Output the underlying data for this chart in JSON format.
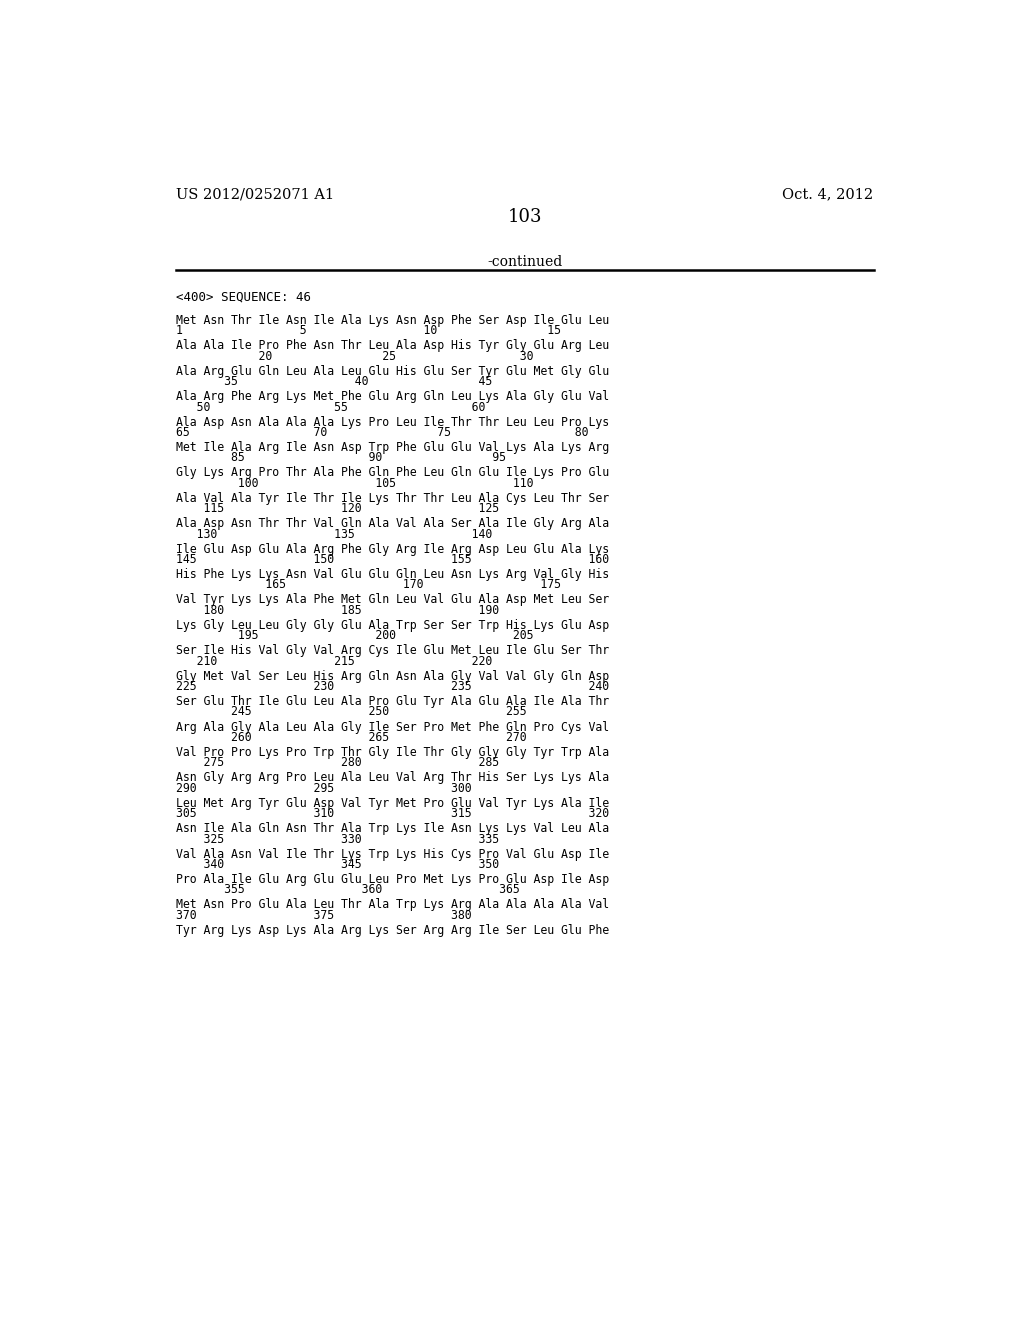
{
  "patent_number": "US 2012/0252071 A1",
  "date": "Oct. 4, 2012",
  "page_number": "103",
  "continued_text": "-continued",
  "sequence_header": "<400> SEQUENCE: 46",
  "background_color": "#ffffff",
  "text_color": "#000000",
  "sequence_blocks": [
    {
      "aa": "Met Asn Thr Ile Asn Ile Ala Lys Asn Asp Phe Ser Asp Ile Glu Leu",
      "nums": "1                 5                 10                15",
      "italic_words": []
    },
    {
      "aa": "Ala Ala Ile Pro Phe Asn Thr Leu Ala Asp His Tyr Gly Glu Arg Leu",
      "nums": "            20                25                  30",
      "italic_words": []
    },
    {
      "aa": "Ala Arg Glu Gln Leu Ala Leu Glu His Glu Ser Tyr Glu Met Gly Glu",
      "nums": "       35                 40                45",
      "italic_words": []
    },
    {
      "aa": "Ala Arg Phe Arg Lys Met Phe Glu Arg Gln Leu Lys Ala Gly Glu Val",
      "nums": "   50                  55                  60",
      "italic_words": []
    },
    {
      "aa": "Ala Asp Asn Ala Ala Ala Lys Pro Leu Ile Thr Thr Leu Leu Pro Lys",
      "nums": "65                  70                75                  80",
      "italic_words": []
    },
    {
      "aa": "Met Ile Ala Arg Ile Asn Asp Trp Phe Glu Glu Val Lys Ala Lys Arg",
      "nums": "        85                  90                95",
      "italic_words": []
    },
    {
      "aa": "Gly Lys Arg Pro Thr Ala Phe Gln Phe Leu Gln Glu Ile Lys Pro Glu",
      "nums": "         100                 105                 110",
      "italic_words": []
    },
    {
      "aa": "Ala Val Ala Tyr Ile Thr Ile Lys Thr Thr Leu Ala Cys Leu Thr Ser",
      "nums": "    115                 120                 125",
      "italic_words": [
        "Lys",
        "Cys"
      ]
    },
    {
      "aa": "Ala Asp Asn Thr Thr Val Gln Ala Val Ala Ser Ala Ile Gly Arg Ala",
      "nums": "   130                 135                 140",
      "italic_words": []
    },
    {
      "aa": "Ile Glu Asp Glu Ala Arg Phe Gly Arg Ile Arg Asp Leu Glu Ala Lys",
      "nums": "145                 150                 155                 160",
      "italic_words": []
    },
    {
      "aa": "His Phe Lys Lys Asn Val Glu Glu Gln Leu Asn Lys Arg Val Gly His",
      "nums": "             165                 170                 175",
      "italic_words": []
    },
    {
      "aa": "Val Tyr Lys Lys Ala Phe Met Gln Leu Val Glu Ala Asp Met Leu Ser",
      "nums": "    180                 185                 190",
      "italic_words": []
    },
    {
      "aa": "Lys Gly Leu Leu Gly Gly Glu Ala Trp Ser Ser Trp His Lys Glu Asp",
      "nums": "         195                 200                 205",
      "italic_words": []
    },
    {
      "aa": "Ser Ile His Val Gly Val Arg Cys Ile Glu Met Leu Ile Glu Ser Thr",
      "nums": "   210                 215                 220",
      "italic_words": [
        "Cys"
      ]
    },
    {
      "aa": "Gly Met Val Ser Leu His Arg Gln Asn Ala Gly Val Val Gly Gln Asp",
      "nums": "225                 230                 235                 240",
      "italic_words": []
    },
    {
      "aa": "Ser Glu Thr Ile Glu Leu Ala Pro Glu Tyr Ala Glu Ala Ile Ala Thr",
      "nums": "        245                 250                 255",
      "italic_words": []
    },
    {
      "aa": "Arg Ala Gly Ala Leu Ala Gly Ile Ser Pro Met Phe Gln Pro Cys Val",
      "nums": "        260                 265                 270",
      "italic_words": [
        "Cys"
      ]
    },
    {
      "aa": "Val Pro Pro Lys Pro Trp Thr Gly Ile Thr Gly Gly Gly Tyr Trp Ala",
      "nums": "    275                 280                 285",
      "italic_words": []
    },
    {
      "aa": "Asn Gly Arg Arg Pro Leu Ala Leu Val Arg Thr His Ser Lys Lys Ala",
      "nums": "290                 295                 300",
      "italic_words": []
    },
    {
      "aa": "Leu Met Arg Tyr Glu Asp Val Tyr Met Pro Glu Val Tyr Lys Ala Ile",
      "nums": "305                 310                 315                 320",
      "italic_words": [
        "Lys"
      ]
    },
    {
      "aa": "Asn Ile Ala Gln Asn Thr Ala Trp Lys Ile Asn Lys Lys Val Leu Ala",
      "nums": "    325                 330                 335",
      "italic_words": [
        "Lys",
        "Lys"
      ]
    },
    {
      "aa": "Val Ala Asn Val Ile Thr Lys Trp Lys His Cys Pro Val Glu Asp Ile",
      "nums": "    340                 345                 350",
      "italic_words": [
        "Lys",
        "Lys",
        "His",
        "Cys"
      ]
    },
    {
      "aa": "Pro Ala Ile Glu Arg Glu Glu Leu Pro Met Lys Pro Glu Asp Ile Asp",
      "nums": "       355                 360                 365",
      "italic_words": [
        "Lys"
      ]
    },
    {
      "aa": "Met Asn Pro Glu Ala Leu Thr Ala Trp Lys Arg Ala Ala Ala Ala Val",
      "nums": "370                 375                 380",
      "italic_words": []
    },
    {
      "aa": "Tyr Arg Lys Asp Lys Ala Arg Lys Ser Arg Arg Ile Ser Leu Glu Phe",
      "nums": "",
      "italic_words": [
        "Lys",
        "Lys",
        "Lys"
      ]
    }
  ]
}
